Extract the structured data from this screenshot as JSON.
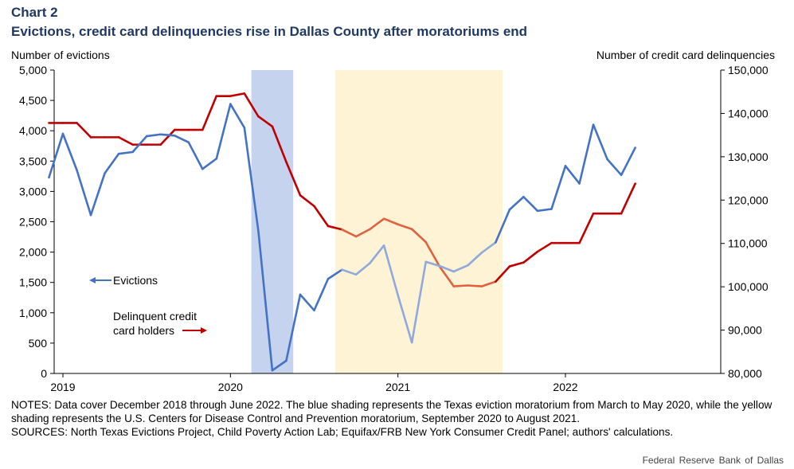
{
  "header": {
    "chart_label": "Chart 2",
    "title": "Evictions, credit card delinquencies rise in Dallas County after moratoriums end"
  },
  "axes": {
    "left_title": "Number of evictions",
    "right_title": "Number of credit card delinquencies"
  },
  "notes": {
    "line1": "NOTES: Data cover December 2018 through June 2022. The blue shading represents the Texas eviction moratorium from March to May 2020, while the yellow shading represents the U.S. Centers for Disease Control and Prevention moratorium, September 2020 to August 2021.",
    "line2": "SOURCES: North Texas Evictions Project, Child Poverty Action Lab; Equifax/FRB New York Consumer Credit Panel; authors' calculations."
  },
  "source_credit": "Federal  Reserve  Bank of Dallas",
  "colors": {
    "evictions": "#4472c4",
    "evictions_faded": "#8ea9db",
    "delinquencies": "#c00000",
    "delinquencies_faded": "#e06040",
    "blue_shade": "#c5d3ee",
    "yellow_shade": "#fff3d6"
  },
  "chart_data": {
    "type": "line",
    "x_ticks": [
      "2019",
      "2020",
      "2021",
      "2022"
    ],
    "y_left": {
      "min": 0,
      "max": 5000,
      "ticks": [
        "0",
        "500",
        "1,000",
        "1,500",
        "2,000",
        "2,500",
        "3,000",
        "3,500",
        "4,000",
        "4,500",
        "5,000"
      ]
    },
    "y_right": {
      "min": 80000,
      "max": 150000,
      "ticks": [
        "80,000",
        "90,000",
        "100,000",
        "110,000",
        "120,000",
        "130,000",
        "140,000",
        "150,000"
      ]
    },
    "shaded_periods": [
      {
        "name": "Texas eviction moratorium",
        "start": "2020-03",
        "end": "2020-05",
        "color": "blue"
      },
      {
        "name": "CDC moratorium",
        "start": "2020-09",
        "end": "2021-08",
        "color": "yellow"
      }
    ],
    "series": [
      {
        "name": "Evictions",
        "axis": "left",
        "x": [
          "2018-12",
          "2019-01",
          "2019-02",
          "2019-03",
          "2019-04",
          "2019-05",
          "2019-06",
          "2019-07",
          "2019-08",
          "2019-09",
          "2019-10",
          "2019-11",
          "2019-12",
          "2020-01",
          "2020-02",
          "2020-03",
          "2020-04",
          "2020-05",
          "2020-06",
          "2020-07",
          "2020-08",
          "2020-09",
          "2020-10",
          "2020-11",
          "2020-12",
          "2021-01",
          "2021-02",
          "2021-03",
          "2021-04",
          "2021-05",
          "2021-06",
          "2021-07",
          "2021-08",
          "2021-09",
          "2021-10",
          "2021-11",
          "2021-12",
          "2022-01",
          "2022-02",
          "2022-03",
          "2022-04",
          "2022-05",
          "2022-06"
        ],
        "values": [
          3230,
          3950,
          3350,
          2610,
          3300,
          3620,
          3650,
          3910,
          3940,
          3920,
          3810,
          3370,
          3540,
          4440,
          4050,
          2350,
          50,
          210,
          1300,
          1040,
          1560,
          1710,
          1630,
          1820,
          2110,
          1290,
          510,
          1840,
          1770,
          1680,
          1780,
          1990,
          2160,
          2700,
          2910,
          2680,
          2710,
          3420,
          3130,
          4100,
          3530,
          3270,
          3720
        ]
      },
      {
        "name": "Delinquent credit card holders",
        "axis": "right",
        "x": [
          "2018-12",
          "2019-01",
          "2019-02",
          "2019-03",
          "2019-04",
          "2019-05",
          "2019-06",
          "2019-07",
          "2019-08",
          "2019-09",
          "2019-10",
          "2019-11",
          "2019-12",
          "2020-01",
          "2020-02",
          "2020-03",
          "2020-04",
          "2020-05",
          "2020-06",
          "2020-07",
          "2020-08",
          "2020-09",
          "2020-10",
          "2020-11",
          "2020-12",
          "2021-01",
          "2021-02",
          "2021-03",
          "2021-04",
          "2021-05",
          "2021-06",
          "2021-07",
          "2021-08",
          "2021-09",
          "2021-10",
          "2021-11",
          "2021-12",
          "2022-01",
          "2022-02",
          "2022-03",
          "2022-04",
          "2022-05",
          "2022-06"
        ],
        "values": [
          137800,
          137800,
          137800,
          134500,
          134500,
          134500,
          132800,
          132800,
          132800,
          136200,
          136200,
          136200,
          144000,
          144000,
          144600,
          139300,
          137000,
          128800,
          121100,
          118600,
          114000,
          113200,
          111600,
          113300,
          115700,
          114400,
          113300,
          110300,
          104600,
          100100,
          100300,
          100100,
          101200,
          104700,
          105600,
          108100,
          110100,
          110100,
          110100,
          116900,
          116900,
          116900,
          123800
        ]
      }
    ],
    "legend": [
      "Evictions",
      "Delinquent credit card holders"
    ]
  }
}
